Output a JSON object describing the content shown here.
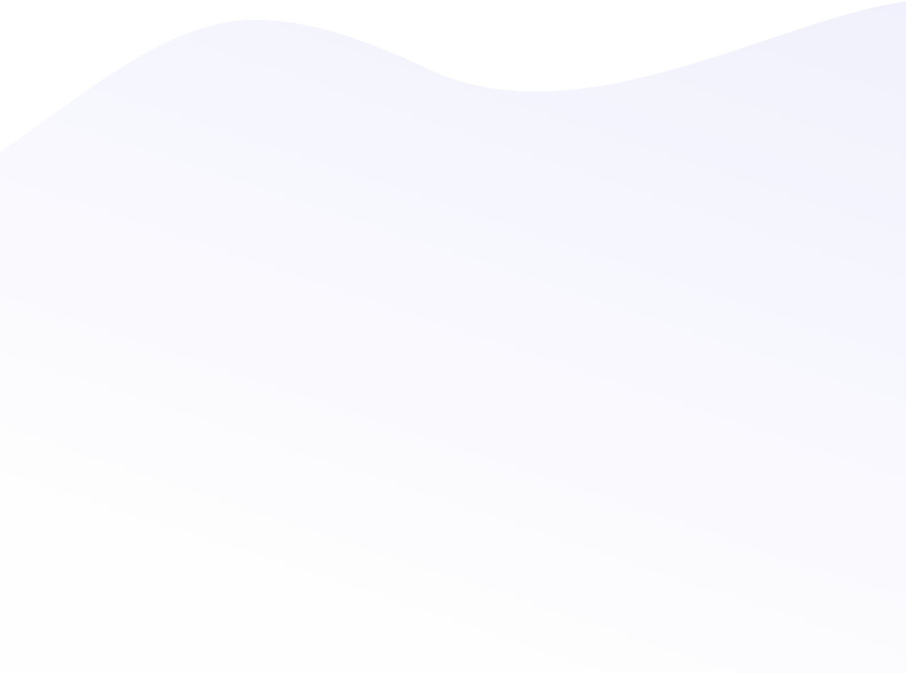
{
  "background": {
    "base_color": "#ffffff",
    "wave_color_start": "#f1f1fd",
    "wave_color_end": "#ffffff",
    "shape": "wave-gradient"
  }
}
